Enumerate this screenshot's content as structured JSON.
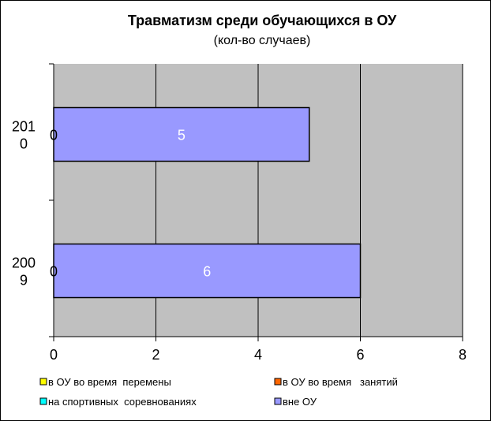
{
  "chart_data": {
    "type": "bar",
    "orientation": "horizontal",
    "stacked": true,
    "title": "Травматизм среди обучающихся в ОУ",
    "subtitle": "(кол-во случаев)",
    "categories": [
      "2010",
      "2009"
    ],
    "category_labels": [
      [
        "201",
        "0"
      ],
      [
        "200",
        "9"
      ]
    ],
    "series": [
      {
        "name": "в ОУ во время  перемены",
        "values": [
          0,
          0
        ],
        "color": "#ffff00"
      },
      {
        "name": "в ОУ во время   занятий",
        "values": [
          0,
          0
        ],
        "color": "#ff6600"
      },
      {
        "name": "на спортивных  соревнованиях",
        "values": [
          0,
          0
        ],
        "color": "#00ffff"
      },
      {
        "name": "вне ОУ",
        "values": [
          5,
          6
        ],
        "color": "#9999ff"
      }
    ],
    "zero_labels": [
      "0",
      "0"
    ],
    "xlim": [
      0,
      8
    ],
    "xticks": [
      "0",
      "2",
      "4",
      "6",
      "8"
    ],
    "grid": true,
    "plot_background": "#c0c0c0",
    "legend_position": "bottom"
  }
}
